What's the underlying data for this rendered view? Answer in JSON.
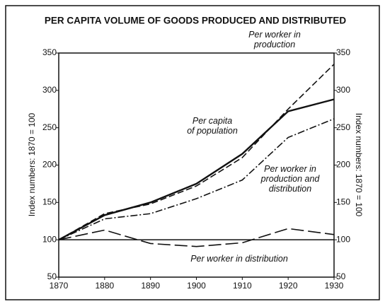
{
  "chart_data": {
    "type": "line",
    "title": "PER CAPITA VOLUME OF GOODS PRODUCED AND DISTRIBUTED",
    "ylabel": "Index numbers: 1870 = 100",
    "y2label": "Index numbers: 1870 = 100",
    "x": [
      1870,
      1880,
      1890,
      1900,
      1910,
      1920,
      1930
    ],
    "xlim": [
      1870,
      1930
    ],
    "xticks": [
      1870,
      1880,
      1890,
      1900,
      1910,
      1920,
      1930
    ],
    "ylim": [
      50,
      350
    ],
    "yticks": [
      50,
      100,
      150,
      200,
      250,
      300,
      350
    ],
    "y2lim": [
      50,
      350
    ],
    "y2ticks": [
      50,
      100,
      150,
      200,
      250,
      300,
      350
    ],
    "hline": 100,
    "series": [
      {
        "name": "Per worker in production",
        "color": "#111111",
        "values": [
          100,
          135,
          148,
          172,
          210,
          275,
          335
        ]
      },
      {
        "name": "Per capita of population",
        "color": "#111111",
        "values": [
          100,
          133,
          150,
          175,
          215,
          272,
          288
        ]
      },
      {
        "name": "Per worker in production and distribution",
        "color": "#111111",
        "values": [
          100,
          128,
          135,
          155,
          180,
          237,
          262
        ]
      },
      {
        "name": "Per worker in distribution",
        "color": "#111111",
        "values": [
          100,
          113,
          95,
          91,
          96,
          115,
          107
        ]
      }
    ]
  }
}
